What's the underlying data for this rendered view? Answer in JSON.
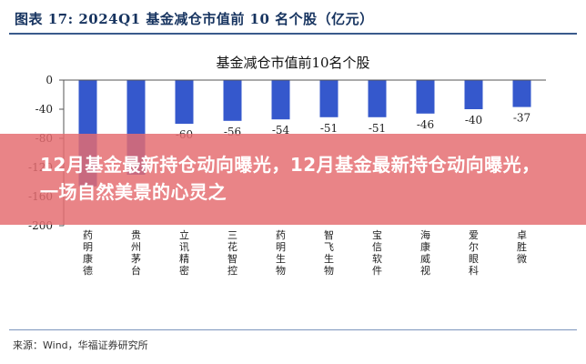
{
  "header": {
    "title": "图表 17:  2024Q1 基金减仓市值前 10 名个股（亿元）"
  },
  "overlay": {
    "text": "12月基金最新持仓动向曝光，12月基金最新持仓动向曝光，一场自然美景的心灵之"
  },
  "footer": {
    "source": "来源：Wind，华福证券研究所"
  },
  "chart_data": {
    "type": "bar",
    "title": "基金减仓市值前10名个股",
    "categories": [
      "药明康德",
      "贵州茅台",
      "立讯精密",
      "三花智控",
      "药明生物",
      "智飞生物",
      "宝信软件",
      "海康威视",
      "爱尔眼科",
      "卓胜微"
    ],
    "values": [
      -146,
      -130,
      -60,
      -56,
      -54,
      -51,
      -51,
      -46,
      -40,
      -37
    ],
    "data_labels": [
      "",
      "",
      "-60",
      "-56",
      "-54",
      "-51",
      "-51",
      "-46",
      "-40",
      "-37"
    ],
    "ylim": [
      -200,
      0
    ],
    "yticks": [
      0,
      -40,
      -80,
      -120,
      -160,
      -200
    ],
    "grid": false,
    "bar_color": "#3558cc"
  }
}
